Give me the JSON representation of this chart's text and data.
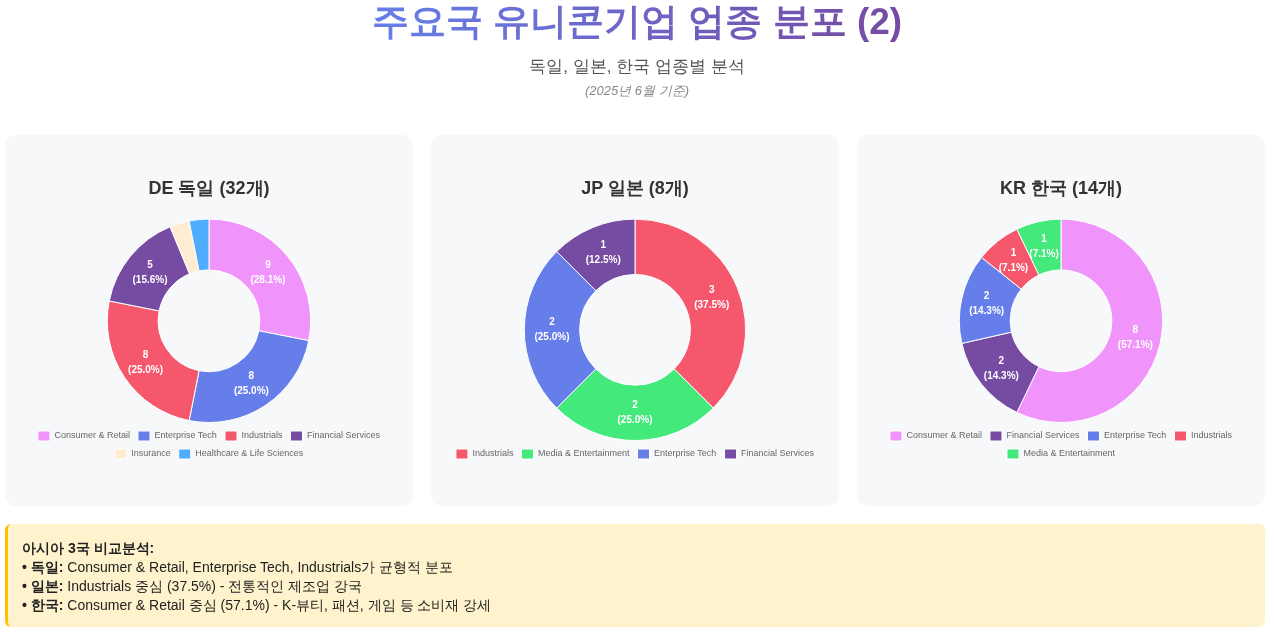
{
  "chart_data": [
    {
      "type": "other",
      "title": "주요국 유니콘기업 업종 분포 (2)",
      "subtitle": "독일, 일본, 한국 업종별 분석",
      "annotations": [
        "(2025년 6월 기준)"
      ]
    },
    {
      "type": "donut",
      "title": "DE 독일 (32개)",
      "categories": [
        "Consumer & Retail",
        "Enterprise Tech",
        "Industrials",
        "Financial Services",
        "Insurance",
        "Healthcare & Life Sciences"
      ],
      "values": [
        9,
        8,
        8,
        5,
        1,
        1
      ],
      "colors": [
        "#f093fb",
        "#667eea",
        "#f5576c",
        "#764ba2",
        "#ffecd2",
        "#4facfe"
      ],
      "value_labels": [
        "9\n(28.1%)",
        "8\n(25.0%)",
        "8\n(25.0%)",
        "5\n(15.6%)",
        null,
        null
      ],
      "legend": "bottom"
    },
    {
      "type": "donut",
      "title": "JP 일본 (8개)",
      "categories": [
        "Industrials",
        "Media & Entertainment",
        "Enterprise Tech",
        "Financial Services"
      ],
      "values": [
        3,
        2,
        2,
        1
      ],
      "colors": [
        "#f5576c",
        "#43e97b",
        "#667eea",
        "#764ba2"
      ],
      "value_labels": [
        "3\n(37.5%)",
        "2\n(25.0%)",
        "2\n(25.0%)",
        "1\n(12.5%)"
      ],
      "legend": "bottom"
    },
    {
      "type": "donut",
      "title": "KR 한국 (14개)",
      "categories": [
        "Consumer & Retail",
        "Financial Services",
        "Enterprise Tech",
        "Industrials",
        "Media & Entertainment"
      ],
      "values": [
        8,
        2,
        2,
        1,
        1
      ],
      "colors": [
        "#f093fb",
        "#764ba2",
        "#667eea",
        "#f5576c",
        "#43e97b"
      ],
      "value_labels": [
        "8\n(57.1%)",
        "2\n(14.3%)",
        "2\n(14.3%)",
        "1\n(7.1%)",
        "1\n(7.1%)"
      ],
      "legend": "bottom"
    },
    {
      "type": "other",
      "title": "아시아 3국 비교분석:",
      "annotations": [
        "• 독일: Consumer & Retail, Enterprise Tech, Industrials가 균형적 분포",
        "• 일본: Industrials 중심 (37.5%) - 전통적인 제조업 강국",
        "• 한국: Consumer & Retail 중심 (57.1%) - K-뷰티, 패션, 게임 등 소비재 강세"
      ]
    }
  ]
}
